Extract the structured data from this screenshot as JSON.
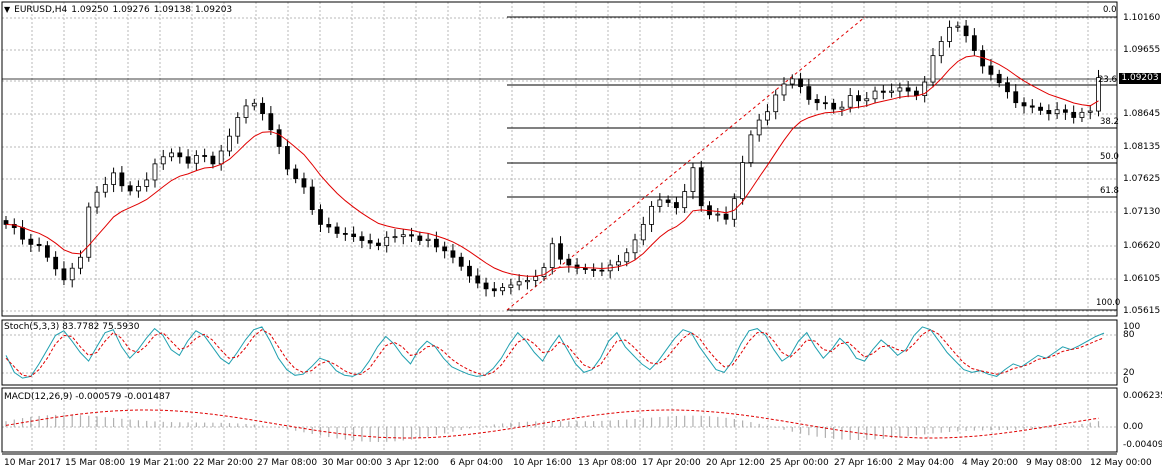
{
  "main": {
    "symbol_menu_icon": "triangle-down-icon",
    "symbol": "EURUSD,H4",
    "ohlc": [
      "1.09250",
      "1.09276",
      "1.09138",
      "1.09203"
    ],
    "current_price": "1.09203",
    "y_ticks": [
      "1.10160",
      "1.09655",
      "1.09140",
      "1.08645",
      "1.08135",
      "1.07625",
      "1.07130",
      "1.06620",
      "1.06105",
      "1.05615"
    ],
    "fib_levels": [
      "0.0",
      "23.6",
      "38.2",
      "50.0",
      "61.8",
      "100.0"
    ]
  },
  "stoch": {
    "label": "Stoch(5,3,3) 83.7782 75.5930",
    "y_ticks": [
      "100",
      "80",
      "20",
      "0"
    ]
  },
  "macd": {
    "label": "MACD(12,26,9) -0.000579 -0.001487",
    "y_ticks": [
      "0.006235",
      "0.00",
      "-0.004097"
    ]
  },
  "x_ticks": [
    "10 Mar 2017",
    "15 Mar 08:00",
    "19 Mar 21:00",
    "22 Mar 20:00",
    "27 Mar 08:00",
    "30 Mar 00:00",
    "3 Apr 12:00",
    "6 Apr 04:00",
    "10 Apr 16:00",
    "13 Apr 08:00",
    "17 Apr 20:00",
    "20 Apr 12:00",
    "25 Apr 00:00",
    "27 Apr 16:00",
    "2 May 04:00",
    "4 May 20:00",
    "9 May 08:00",
    "12 May 00:00"
  ],
  "colors": {
    "grid": "#b8b8b8",
    "candle": "#000000",
    "ma": "#e00000",
    "stoch_main": "#20a0b0",
    "stoch_signal": "#e00000",
    "macd_hist": "#b0b0b0",
    "macd_signal": "#e00000",
    "fib": "#000000",
    "fib_trend": "#e00000"
  },
  "chart_data": [
    {
      "type": "candlestick",
      "title": "EURUSD,H4",
      "ylim": [
        1.0556,
        1.1028
      ],
      "close": [
        1.0692,
        1.0687,
        1.0669,
        1.0661,
        1.0659,
        1.0641,
        1.0623,
        1.0606,
        1.0624,
        1.0641,
        1.0719,
        1.0742,
        1.0754,
        1.0772,
        1.0752,
        1.0744,
        1.0751,
        1.0761,
        1.0786,
        1.0797,
        1.0803,
        1.0797,
        1.0787,
        1.0799,
        1.0798,
        1.0786,
        1.0806,
        1.0829,
        1.0858,
        1.0876,
        1.088,
        1.0864,
        1.0839,
        1.0813,
        1.0778,
        1.0763,
        1.075,
        1.0715,
        1.0692,
        1.0688,
        1.0678,
        1.0677,
        1.0673,
        1.0667,
        1.0663,
        1.0659,
        1.0672,
        1.0673,
        1.0676,
        1.0674,
        1.0667,
        1.0669,
        1.0657,
        1.0651,
        1.0641,
        1.0627,
        1.0612,
        1.0601,
        1.0592,
        1.0589,
        1.0594,
        1.0598,
        1.0603,
        1.0605,
        1.0611,
        1.0625,
        1.0662,
        1.0638,
        1.0629,
        1.0624,
        1.0622,
        1.0621,
        1.062,
        1.0629,
        1.0634,
        1.0648,
        1.0668,
        1.0692,
        1.072,
        1.073,
        1.0726,
        1.0718,
        1.0743,
        1.078,
        1.0721,
        1.0707,
        1.0708,
        1.07,
        1.0732,
        1.0788,
        1.0831,
        1.0854,
        1.0867,
        1.0893,
        1.091,
        1.0918,
        1.0906,
        1.0886,
        1.0881,
        1.088,
        1.0871,
        1.0874,
        1.0892,
        1.0884,
        1.0887,
        1.0899,
        1.0897,
        1.0899,
        1.0904,
        1.0899,
        1.0892,
        1.0913,
        1.0954,
        1.0976,
        1.0998,
        1.1,
        1.0985,
        1.0962,
        1.0938,
        1.0925,
        1.0912,
        1.0898,
        1.0881,
        1.0876,
        1.0874,
        1.0869,
        1.0864,
        1.087,
        1.0866,
        1.0858,
        1.0866,
        1.0868,
        1.092
      ],
      "ma_period_note": "",
      "fibonacci": {
        "levels": [
          "0.0",
          "23.6",
          "38.2",
          "50.0",
          "61.8",
          "100.0"
        ],
        "high": 1.101,
        "low": 1.0575
      }
    },
    {
      "type": "line",
      "title": "Stoch(5,3,3) 83.7782 75.5930",
      "ylim": [
        0,
        100
      ],
      "series": [
        {
          "values": [
            45,
            15,
            5,
            8,
            30,
            55,
            80,
            88,
            70,
            50,
            35,
            60,
            85,
            90,
            60,
            40,
            55,
            75,
            92,
            80,
            55,
            45,
            70,
            88,
            80,
            60,
            40,
            30,
            50,
            72,
            90,
            95,
            70,
            40,
            20,
            10,
            12,
            25,
            40,
            35,
            18,
            10,
            8,
            15,
            35,
            60,
            78,
            65,
            45,
            30,
            55,
            70,
            60,
            40,
            25,
            18,
            12,
            8,
            10,
            22,
            40,
            65,
            85,
            70,
            50,
            35,
            60,
            80,
            55,
            30,
            15,
            20,
            40,
            70,
            85,
            60,
            45,
            30,
            20,
            35,
            55,
            75,
            90,
            85,
            60,
            40,
            20,
            15,
            35,
            65,
            88,
            92,
            80,
            55,
            35,
            45,
            70,
            85,
            60,
            40,
            55,
            75,
            62,
            40,
            35,
            55,
            72,
            60,
            45,
            55,
            80,
            95,
            90,
            70,
            50,
            35,
            20,
            15,
            18,
            12,
            8,
            20,
            30,
            25,
            35,
            45,
            40,
            50,
            60,
            55,
            62,
            70,
            78,
            84
          ]
        },
        {
          "values": [
            40,
            25,
            10,
            8,
            20,
            40,
            65,
            80,
            78,
            60,
            45,
            50,
            70,
            85,
            75,
            55,
            50,
            62,
            80,
            85,
            70,
            55,
            60,
            75,
            82,
            72,
            55,
            40,
            42,
            58,
            78,
            90,
            82,
            60,
            38,
            22,
            15,
            18,
            30,
            35,
            28,
            18,
            12,
            12,
            22,
            42,
            62,
            68,
            60,
            45,
            48,
            60,
            62,
            52,
            38,
            28,
            20,
            14,
            10,
            15,
            28,
            48,
            68,
            75,
            65,
            50,
            52,
            68,
            62,
            45,
            28,
            22,
            28,
            50,
            70,
            72,
            60,
            45,
            32,
            30,
            40,
            58,
            75,
            85,
            75,
            55,
            38,
            25,
            28,
            48,
            70,
            85,
            85,
            70,
            50,
            42,
            55,
            72,
            70,
            55,
            52,
            65,
            68,
            55,
            42,
            48,
            60,
            62,
            55,
            52,
            65,
            82,
            90,
            82,
            65,
            48,
            32,
            22,
            18,
            15,
            12,
            15,
            22,
            25,
            30,
            38,
            40,
            45,
            52,
            55,
            58,
            64,
            70,
            76
          ]
        }
      ]
    },
    {
      "type": "bar",
      "title": "MACD(12,26,9) -0.000579 -0.001487",
      "ylim": [
        -0.004097,
        0.006235
      ]
    }
  ]
}
